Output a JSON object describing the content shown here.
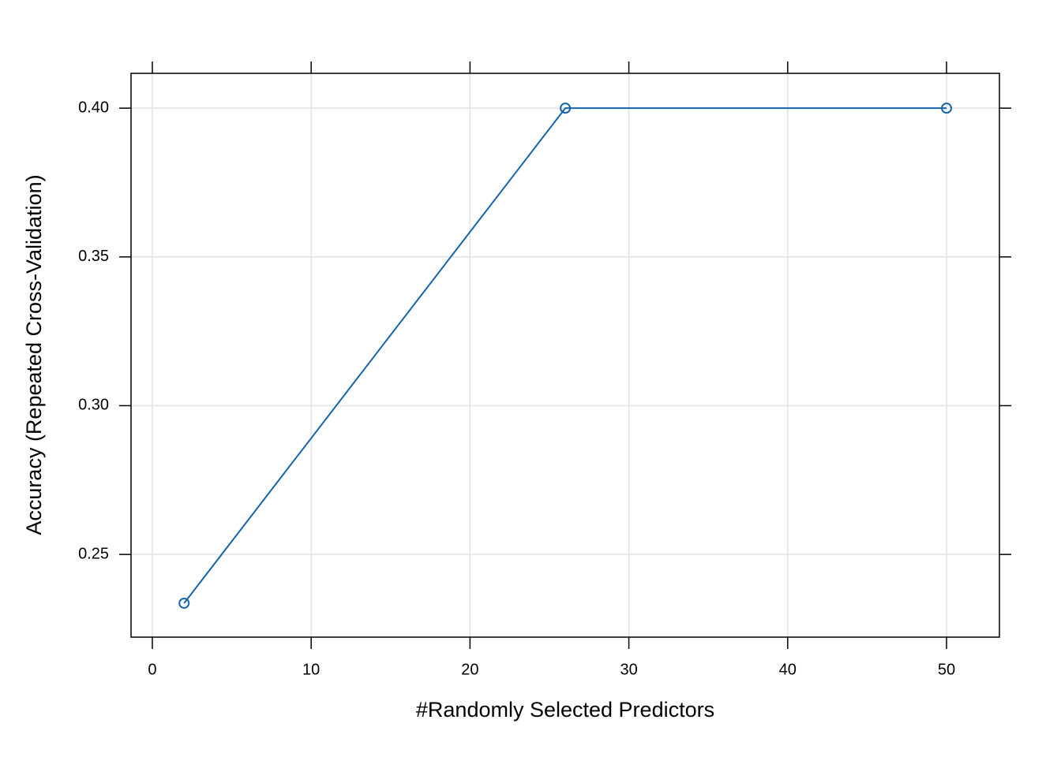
{
  "chart_data": {
    "type": "line",
    "x_label": "#Randomly Selected Predictors",
    "y_label": "Accuracy (Repeated Cross-Validation)",
    "x": [
      2,
      26,
      50
    ],
    "values": [
      0.2336,
      0.4,
      0.4
    ],
    "color": "#1764a8",
    "xlim": [
      -1.34,
      53.33
    ],
    "xticks": [
      0,
      10,
      20,
      30,
      40,
      50
    ],
    "ylim": [
      0.2222,
      0.4117
    ],
    "yticks": [
      0.25,
      0.35,
      {
        "value": 0.3,
        "label": "0.30"
      },
      {
        "value": 0.4,
        "label": "0.40"
      }
    ],
    "grid": true
  }
}
